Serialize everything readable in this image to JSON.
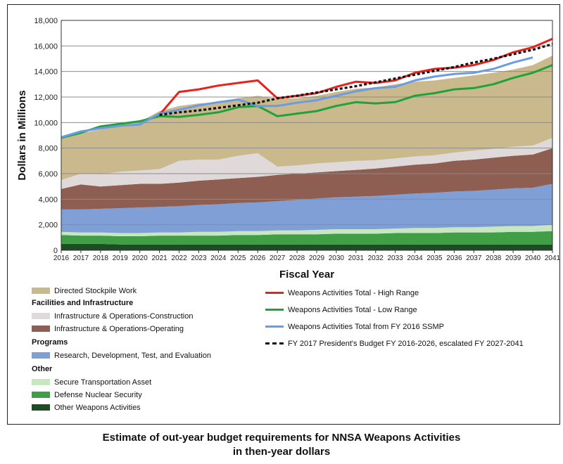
{
  "caption": {
    "line1": "Estimate of out-year budget requirements for NNSA Weapons Activities",
    "line2": "in then-year dollars"
  },
  "chart_data": {
    "type": "area",
    "xlabel": "Fiscal Year",
    "ylabel": "Dollars in Millions",
    "xlim": [
      2016,
      2041
    ],
    "ylim": [
      0,
      18000
    ],
    "yticks": [
      0,
      2000,
      4000,
      6000,
      8000,
      10000,
      12000,
      14000,
      16000,
      18000
    ],
    "ytick_labels": [
      "0",
      "2,000",
      "4,000",
      "6,000",
      "8,000",
      "10,000",
      "12,000",
      "14,000",
      "16,000",
      "18,000"
    ],
    "grid": "horizontal",
    "legend": "below",
    "x": [
      2016,
      2017,
      2018,
      2019,
      2020,
      2021,
      2022,
      2023,
      2024,
      2025,
      2026,
      2027,
      2028,
      2029,
      2030,
      2031,
      2032,
      2033,
      2034,
      2035,
      2036,
      2037,
      2038,
      2039,
      2040,
      2041
    ],
    "stacked_series": [
      {
        "name": "Other Weapons Activities",
        "color": "#1e4d24",
        "values": [
          500,
          500,
          500,
          450,
          450,
          450,
          450,
          450,
          450,
          450,
          450,
          450,
          450,
          450,
          450,
          450,
          450,
          450,
          450,
          450,
          450,
          450,
          450,
          450,
          450,
          450
        ]
      },
      {
        "name": "Defense Nuclear Security",
        "color": "#3f9e46",
        "values": [
          700,
          650,
          650,
          650,
          650,
          700,
          700,
          700,
          700,
          750,
          750,
          800,
          800,
          800,
          850,
          850,
          850,
          900,
          900,
          900,
          950,
          950,
          950,
          1000,
          1000,
          1050
        ]
      },
      {
        "name": "Secure Transportation Asset",
        "color": "#c7e7c1",
        "values": [
          250,
          250,
          250,
          250,
          250,
          250,
          250,
          300,
          300,
          300,
          300,
          300,
          300,
          350,
          350,
          350,
          350,
          350,
          400,
          400,
          400,
          400,
          450,
          450,
          450,
          500
        ]
      },
      {
        "name": "Research, Development, Test, and Evaluation",
        "color": "#7f9fd6",
        "values": [
          1750,
          1800,
          1850,
          1950,
          2000,
          2000,
          2050,
          2100,
          2150,
          2200,
          2250,
          2300,
          2400,
          2450,
          2500,
          2550,
          2600,
          2650,
          2700,
          2750,
          2800,
          2850,
          2900,
          2950,
          3000,
          3200
        ]
      },
      {
        "name": "Infrastructure & Operations-Operating",
        "color": "#8e5e52",
        "values": [
          1600,
          1950,
          1750,
          1800,
          1850,
          1800,
          1850,
          1900,
          1950,
          1950,
          2000,
          2050,
          2050,
          2050,
          2050,
          2100,
          2150,
          2200,
          2250,
          2300,
          2400,
          2450,
          2500,
          2550,
          2600,
          2800
        ]
      },
      {
        "name": "Infrastructure & Operations-Construction",
        "color": "#dfd9d9",
        "values": [
          700,
          850,
          950,
          1050,
          1050,
          1150,
          1700,
          1650,
          1550,
          1750,
          1850,
          650,
          650,
          700,
          700,
          700,
          650,
          650,
          650,
          650,
          650,
          700,
          700,
          700,
          700,
          800
        ]
      },
      {
        "name": "Directed Stockpile Work",
        "color": "#c9b98c",
        "values": [
          3300,
          3150,
          3500,
          3700,
          3800,
          4550,
          4300,
          4400,
          4500,
          4500,
          4500,
          5300,
          5250,
          5300,
          5500,
          5650,
          5700,
          5800,
          5850,
          5850,
          5850,
          5900,
          5950,
          6050,
          6300,
          6450
        ]
      }
    ],
    "line_series": [
      {
        "name": "Weapons Activities Total - High Range",
        "color": "#e8211c",
        "dash": "none",
        "values": [
          null,
          null,
          null,
          null,
          null,
          10600,
          12400,
          12600,
          12900,
          13100,
          13300,
          11900,
          12100,
          12300,
          12800,
          13200,
          13100,
          13300,
          13900,
          14200,
          14300,
          14500,
          14900,
          15500,
          15900,
          16550
        ]
      },
      {
        "name": "Weapons Activities Total - Low Range",
        "color": "#1fa339",
        "dash": "none",
        "values": [
          8800,
          9200,
          9700,
          9900,
          10100,
          10500,
          10450,
          10600,
          10800,
          11200,
          11300,
          10500,
          10700,
          10900,
          11300,
          11600,
          11500,
          11600,
          12100,
          12300,
          12600,
          12700,
          13000,
          13500,
          13900,
          14500
        ]
      },
      {
        "name": "Weapons Activities Total from FY 2016 SSMP",
        "color": "#6b9be0",
        "dash": "none",
        "values": [
          8850,
          9300,
          9550,
          9750,
          9850,
          10700,
          11000,
          11350,
          11600,
          11800,
          11300,
          11300,
          11550,
          11750,
          12100,
          12450,
          12700,
          12800,
          13300,
          13600,
          13800,
          13900,
          14200,
          14700,
          15100,
          null
        ]
      },
      {
        "name": "FY 2017 President's Budget FY 2016-2026, escalated FY 2027-2041",
        "color": "#111111",
        "dash": "4,3",
        "values": [
          null,
          null,
          null,
          null,
          null,
          10600,
          10800,
          10950,
          11150,
          11350,
          11550,
          11900,
          12100,
          12350,
          12600,
          12850,
          13150,
          13450,
          13750,
          14050,
          14350,
          14700,
          15000,
          15350,
          15700,
          16150
        ]
      }
    ]
  },
  "legend": {
    "left": [
      {
        "kind": "swatch",
        "label": "Directed Stockpile Work",
        "color": "#c9b98c"
      },
      {
        "kind": "heading",
        "label": "Facilities and Infrastructure"
      },
      {
        "kind": "swatch",
        "label": "Infrastructure & Operations-Construction",
        "color": "#dfd9d9"
      },
      {
        "kind": "swatch",
        "label": "Infrastructure & Operations-Operating",
        "color": "#8e5e52"
      },
      {
        "kind": "heading",
        "label": "Programs"
      },
      {
        "kind": "swatch",
        "label": "Research, Development, Test, and Evaluation",
        "color": "#7f9fd6"
      },
      {
        "kind": "heading",
        "label": "Other"
      },
      {
        "kind": "swatch",
        "label": "Secure Transportation Asset",
        "color": "#c7e7c1"
      },
      {
        "kind": "swatch",
        "label": "Defense Nuclear Security",
        "color": "#3f9e46"
      },
      {
        "kind": "swatch",
        "label": "Other Weapons Activities",
        "color": "#1e4d24"
      }
    ],
    "right": [
      {
        "kind": "line",
        "label": "Weapons Activities Total - High Range",
        "color": "#e8211c",
        "dash": "none"
      },
      {
        "kind": "line",
        "label": "Weapons Activities Total - Low Range",
        "color": "#1fa339",
        "dash": "none"
      },
      {
        "kind": "line",
        "label": "Weapons Activities Total from FY 2016 SSMP",
        "color": "#6b9be0",
        "dash": "none"
      },
      {
        "kind": "line",
        "label": "FY 2017 President's Budget FY 2016-2026, escalated FY 2027-2041",
        "color": "#111111",
        "dash": "dotted"
      }
    ]
  }
}
